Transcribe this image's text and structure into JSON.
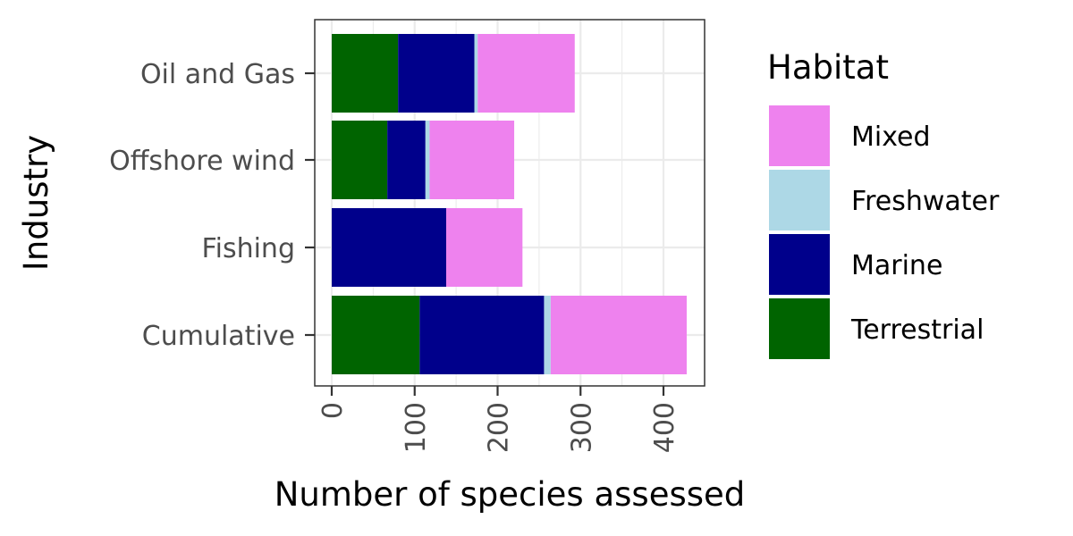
{
  "chart_data": {
    "type": "bar",
    "orientation": "horizontal",
    "stacked": true,
    "title": "",
    "xlabel": "Number of species assessed",
    "ylabel": "Industry",
    "categories": [
      "Oil and Gas",
      "Offshore wind",
      "Fishing",
      "Cumulative"
    ],
    "x_ticks": [
      0,
      100,
      200,
      300,
      400
    ],
    "xlim": [
      -20,
      450
    ],
    "grid": true,
    "legend": {
      "title": "Habitat",
      "position": "right",
      "order": [
        "Mixed",
        "Freshwater",
        "Marine",
        "Terrestrial"
      ]
    },
    "series": [
      {
        "name": "Terrestrial",
        "color": "#006400",
        "values": [
          80,
          67,
          0,
          106
        ]
      },
      {
        "name": "Marine",
        "color": "#00008B",
        "values": [
          92,
          46,
          138,
          150
        ]
      },
      {
        "name": "Freshwater",
        "color": "#ADD8E6",
        "values": [
          4,
          5,
          0,
          8
        ]
      },
      {
        "name": "Mixed",
        "color": "#EE82EE",
        "values": [
          117,
          102,
          92,
          164
        ]
      }
    ]
  }
}
